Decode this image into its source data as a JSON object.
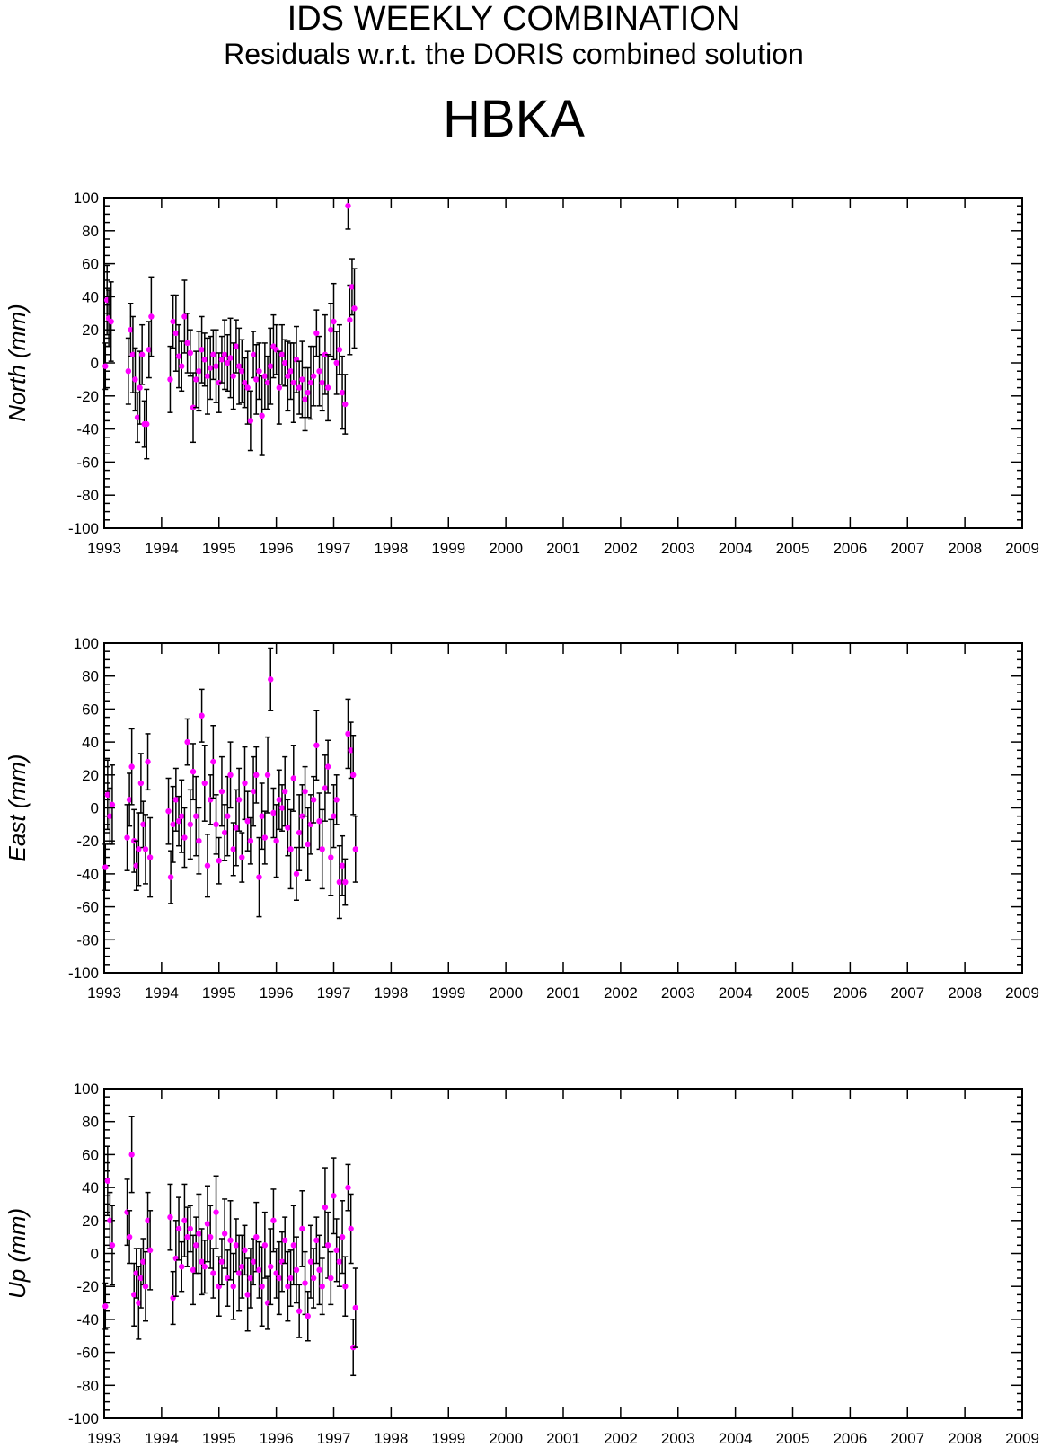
{
  "header": {
    "title": "IDS WEEKLY COMBINATION",
    "subtitle": "Residuals w.r.t. the DORIS combined solution",
    "station": "HBKA"
  },
  "colors": {
    "marker": "#ff00ff",
    "error_bar": "#000000",
    "axis": "#000000"
  },
  "chart_data": [
    {
      "type": "scatter",
      "ylabel": "North (mm)",
      "xlim": [
        1993,
        2009
      ],
      "ylim": [
        -100,
        100
      ],
      "xticks": [
        "1993",
        "1994",
        "1995",
        "1996",
        "1997",
        "1998",
        "1999",
        "2000",
        "2001",
        "2002",
        "2003",
        "2004",
        "2005",
        "2006",
        "2007",
        "2008",
        "2009"
      ],
      "yticks": [
        "100",
        "80",
        "60",
        "40",
        "20",
        "0",
        "-20",
        "-40",
        "-60",
        "-80",
        "-100"
      ],
      "grid": false,
      "series": [
        {
          "x": [
            1993.02,
            1993.05,
            1993.08,
            1993.12,
            1993.42,
            1993.46,
            1993.5,
            1993.54,
            1993.58,
            1993.62,
            1993.66,
            1993.7,
            1993.74,
            1993.78,
            1993.82,
            1994.15,
            1994.2,
            1994.25,
            1994.3,
            1994.35,
            1994.4,
            1994.45,
            1994.5,
            1994.55,
            1994.6,
            1994.65,
            1994.7,
            1994.75,
            1994.8,
            1994.85,
            1994.9,
            1994.95,
            1995.0,
            1995.05,
            1995.1,
            1995.15,
            1995.2,
            1995.25,
            1995.3,
            1995.35,
            1995.4,
            1995.45,
            1995.5,
            1995.55,
            1995.6,
            1995.65,
            1995.7,
            1995.75,
            1995.8,
            1995.85,
            1995.9,
            1995.95,
            1996.0,
            1996.05,
            1996.1,
            1996.15,
            1996.2,
            1996.25,
            1996.3,
            1996.35,
            1996.4,
            1996.45,
            1996.5,
            1996.55,
            1996.6,
            1996.65,
            1996.7,
            1996.75,
            1996.8,
            1996.85,
            1996.9,
            1996.95,
            1997.0,
            1997.05,
            1997.1,
            1997.15,
            1997.2,
            1997.25,
            1997.28,
            1997.32,
            1997.36
          ],
          "y": [
            -2,
            38,
            27,
            25,
            -5,
            20,
            5,
            -10,
            -33,
            -15,
            5,
            -37,
            -37,
            8,
            28,
            -10,
            25,
            18,
            4,
            -2,
            28,
            12,
            6,
            -27,
            -10,
            -5,
            8,
            2,
            -8,
            -3,
            5,
            -2,
            -12,
            2,
            5,
            0,
            3,
            -8,
            10,
            -2,
            -5,
            -12,
            -15,
            -35,
            5,
            -10,
            -5,
            -32,
            -8,
            -12,
            -2,
            10,
            8,
            -15,
            5,
            0,
            -8,
            -5,
            -12,
            2,
            -15,
            -10,
            -22,
            -18,
            -12,
            -8,
            18,
            -5,
            -12,
            5,
            -15,
            20,
            25,
            0,
            8,
            -18,
            -25,
            95,
            26,
            46,
            33
          ]
        }
      ]
    },
    {
      "type": "scatter",
      "ylabel": "East (mm)",
      "xlim": [
        1993,
        2009
      ],
      "ylim": [
        -100,
        100
      ],
      "xticks": [
        "1993",
        "1994",
        "1995",
        "1996",
        "1997",
        "1998",
        "1999",
        "2000",
        "2001",
        "2002",
        "2003",
        "2004",
        "2005",
        "2006",
        "2007",
        "2008",
        "2009"
      ],
      "yticks": [
        "100",
        "80",
        "60",
        "40",
        "20",
        "0",
        "-20",
        "-40",
        "-60",
        "-80",
        "-100"
      ],
      "grid": false,
      "series": [
        {
          "x": [
            1993.02,
            1993.06,
            1993.1,
            1993.14,
            1993.4,
            1993.44,
            1993.48,
            1993.52,
            1993.56,
            1993.6,
            1993.64,
            1993.68,
            1993.72,
            1993.76,
            1993.8,
            1994.12,
            1994.16,
            1994.2,
            1994.25,
            1994.3,
            1994.35,
            1994.4,
            1994.45,
            1994.5,
            1994.55,
            1994.6,
            1994.65,
            1994.7,
            1994.75,
            1994.8,
            1994.85,
            1994.9,
            1994.95,
            1995.0,
            1995.05,
            1995.1,
            1995.15,
            1995.2,
            1995.25,
            1995.3,
            1995.35,
            1995.4,
            1995.45,
            1995.5,
            1995.55,
            1995.6,
            1995.65,
            1995.7,
            1995.75,
            1995.8,
            1995.85,
            1995.9,
            1995.95,
            1996.0,
            1996.05,
            1996.1,
            1996.15,
            1996.2,
            1996.25,
            1996.3,
            1996.35,
            1996.4,
            1996.45,
            1996.5,
            1996.55,
            1996.6,
            1996.65,
            1996.7,
            1996.75,
            1996.8,
            1996.85,
            1996.9,
            1996.95,
            1997.0,
            1997.05,
            1997.1,
            1997.15,
            1997.2,
            1997.25,
            1997.3,
            1997.34,
            1997.38
          ],
          "y": [
            -36,
            8,
            -5,
            2,
            -18,
            5,
            25,
            -20,
            -35,
            -25,
            15,
            -10,
            -25,
            28,
            -30,
            -2,
            -42,
            -10,
            5,
            -8,
            -5,
            -18,
            40,
            -10,
            22,
            -5,
            -20,
            56,
            15,
            -35,
            5,
            28,
            -10,
            -32,
            10,
            -15,
            -5,
            20,
            -25,
            -12,
            5,
            -30,
            15,
            -8,
            -20,
            10,
            20,
            -42,
            -5,
            -18,
            20,
            78,
            -3,
            -20,
            5,
            0,
            10,
            -12,
            -25,
            18,
            -40,
            -15,
            -5,
            10,
            -22,
            -10,
            5,
            38,
            -8,
            -25,
            12,
            25,
            -30,
            -5,
            5,
            -45,
            -35,
            -45,
            45,
            35,
            20,
            -25
          ]
        }
      ]
    },
    {
      "type": "scatter",
      "ylabel": "Up (mm)",
      "xlim": [
        1993,
        2009
      ],
      "ylim": [
        -100,
        100
      ],
      "xticks": [
        "1993",
        "1994",
        "1995",
        "1996",
        "1997",
        "1998",
        "1999",
        "2000",
        "2001",
        "2002",
        "2003",
        "2004",
        "2005",
        "2006",
        "2007",
        "2008",
        "2009"
      ],
      "yticks": [
        "100",
        "80",
        "60",
        "40",
        "20",
        "0",
        "-20",
        "-40",
        "-60",
        "-80",
        "-100"
      ],
      "grid": false,
      "series": [
        {
          "x": [
            1993.02,
            1993.06,
            1993.1,
            1993.14,
            1993.4,
            1993.44,
            1993.48,
            1993.52,
            1993.56,
            1993.6,
            1993.64,
            1993.68,
            1993.72,
            1993.76,
            1993.8,
            1994.15,
            1994.2,
            1994.25,
            1994.3,
            1994.35,
            1994.4,
            1994.45,
            1994.5,
            1994.55,
            1994.6,
            1994.65,
            1994.7,
            1994.75,
            1994.8,
            1994.85,
            1994.9,
            1994.95,
            1995.0,
            1995.05,
            1995.1,
            1995.15,
            1995.2,
            1995.25,
            1995.3,
            1995.35,
            1995.4,
            1995.45,
            1995.5,
            1995.55,
            1995.6,
            1995.65,
            1995.7,
            1995.75,
            1995.8,
            1995.85,
            1995.9,
            1995.95,
            1996.0,
            1996.05,
            1996.1,
            1996.15,
            1996.2,
            1996.25,
            1996.3,
            1996.35,
            1996.4,
            1996.45,
            1996.5,
            1996.55,
            1996.6,
            1996.65,
            1996.7,
            1996.75,
            1996.8,
            1996.85,
            1996.9,
            1996.95,
            1997.0,
            1997.05,
            1997.1,
            1997.15,
            1997.2,
            1997.25,
            1997.3,
            1997.34,
            1997.38
          ],
          "y": [
            -32,
            44,
            20,
            5,
            25,
            10,
            60,
            -25,
            -12,
            -30,
            -15,
            -5,
            -20,
            20,
            2,
            22,
            -27,
            -3,
            15,
            -8,
            20,
            10,
            15,
            -10,
            5,
            12,
            -5,
            -8,
            18,
            10,
            -12,
            25,
            -20,
            -5,
            12,
            -15,
            8,
            -20,
            5,
            -12,
            -8,
            2,
            -25,
            -15,
            -5,
            10,
            -10,
            -20,
            5,
            -30,
            -8,
            20,
            -12,
            -15,
            -5,
            8,
            -20,
            -15,
            5,
            -10,
            -35,
            15,
            -18,
            -38,
            -5,
            -15,
            8,
            -10,
            -20,
            28,
            5,
            -15,
            35,
            2,
            -5,
            10,
            -20,
            40,
            15,
            -57,
            -33
          ]
        }
      ]
    }
  ]
}
